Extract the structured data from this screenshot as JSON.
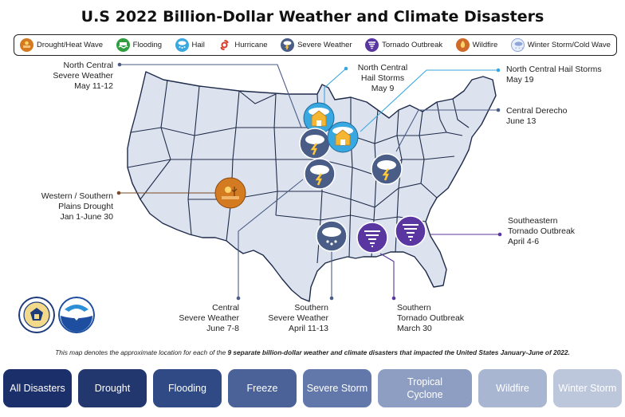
{
  "title": "U.S 2022 Billion-Dollar Weather and Climate Disasters",
  "legend": [
    {
      "label": "Drought/Heat Wave",
      "icon": "drought-icon",
      "color": "#d47b22"
    },
    {
      "label": "Flooding",
      "icon": "flooding-icon",
      "color": "#2e9e3f"
    },
    {
      "label": "Hail",
      "icon": "hail-icon",
      "color": "#3aa8e0"
    },
    {
      "label": "Hurricane",
      "icon": "hurricane-icon",
      "color": "#d63a2a"
    },
    {
      "label": "Severe Weather",
      "icon": "severe-weather-icon",
      "color": "#4a5d86"
    },
    {
      "label": "Tornado  Outbreak",
      "icon": "tornado-icon",
      "color": "#5a36a0"
    },
    {
      "label": "Wildfire",
      "icon": "wildfire-icon",
      "color": "#d06a2a"
    },
    {
      "label": "Winter Storm/Cold Wave",
      "icon": "winter-storm-icon",
      "color": "#8fa7d8"
    }
  ],
  "events": [
    {
      "name": "North Central",
      "name2": "Severe Weather",
      "date": "May 11-12"
    },
    {
      "name": "North Central",
      "name2": "Hail Storms",
      "date": "May 9"
    },
    {
      "name": "North Central Hail Storms",
      "name2": "",
      "date": "May 19"
    },
    {
      "name": "Central Derecho",
      "name2": "",
      "date": "June 13"
    },
    {
      "name": "Western / Southern",
      "name2": "Plains Drought",
      "date": "Jan 1-June 30"
    },
    {
      "name": "Southeastern",
      "name2": "Tornado Outbreak",
      "date": "April 4-6"
    },
    {
      "name": "Central",
      "name2": "Severe Weather",
      "date": "June 7-8"
    },
    {
      "name": "Southern",
      "name2": "Severe Weather",
      "date": "April 11-13"
    },
    {
      "name": "Southern",
      "name2": "Tornado Outbreak",
      "date": "March 30"
    }
  ],
  "note": {
    "prefix": "This map denotes the approximate location for each of the ",
    "bold": "9 separate billion-dollar weather and climate disasters that impacted the United States January-June of 2022.",
    "suffix": ""
  },
  "filters": [
    {
      "label": "All Disasters",
      "color": "#1b2f6b"
    },
    {
      "label": "Drought",
      "color": "#23376f"
    },
    {
      "label": "Flooding",
      "color": "#2f4a85"
    },
    {
      "label": "Freeze",
      "color": "#4a6298"
    },
    {
      "label": "Severe Storm",
      "color": "#6278aa"
    },
    {
      "label": "Tropical Cyclone",
      "color": "#8e9ec2"
    },
    {
      "label": "Wildfire",
      "color": "#a8b6d2"
    },
    {
      "label": "Winter Storm",
      "color": "#bcc7dc"
    }
  ],
  "colors": {
    "state_fill": "#dde3ee",
    "state_stroke": "#1e2b4a",
    "severe": "#4a5d86",
    "hail": "#3aa8e0",
    "tornado": "#5a36a0",
    "drought": "#d47b22"
  }
}
